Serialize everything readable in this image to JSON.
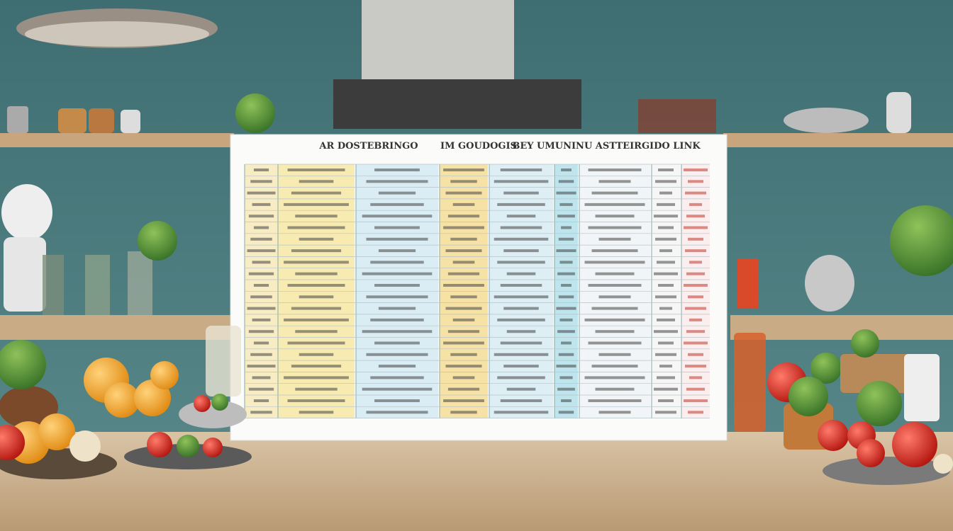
{
  "scene": {
    "poster": {
      "headings": [
        "AR DOSTEBRINGO",
        "IM GOUDOGIS",
        "BEY UMUNINU ASTTEIRGIDO LINK"
      ]
    }
  }
}
